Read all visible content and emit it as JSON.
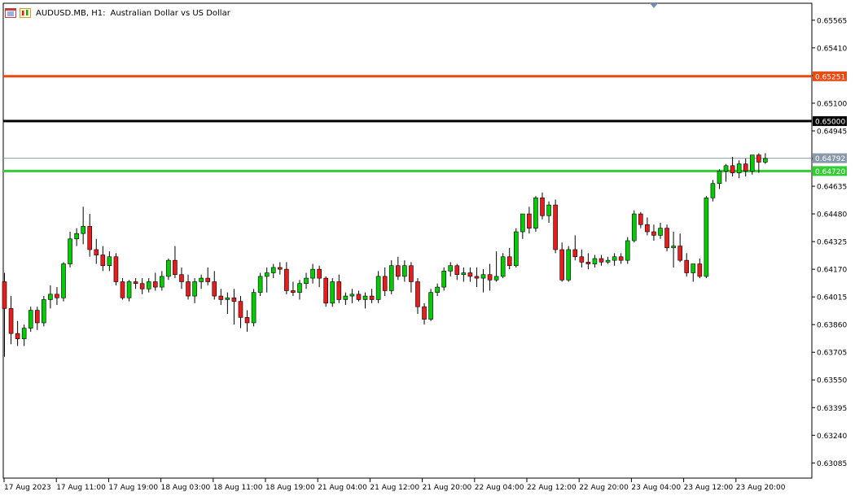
{
  "header": {
    "symbol": "AUDUSD.MB, H1:",
    "description": "Australian Dollar vs US Dollar",
    "icon": "chart-window-icon",
    "icon2": "candles-icon"
  },
  "colors": {
    "background": "#ffffff",
    "axis": "#000000",
    "bull": "#00cc00",
    "bear": "#e81c1c",
    "wick": "#000000",
    "resistance_line": "#e84a12",
    "round_level_line": "#000000",
    "support_line": "#33cc33",
    "bid_line": "#8899aa",
    "bid_label_bg": "#8899aa"
  },
  "chart_data": {
    "type": "candlestick",
    "symbol": "AUDUSD.MB",
    "timeframe": "H1",
    "ylim": [
      0.63,
      0.6566
    ],
    "y_ticks": [
      "0.65565",
      "0.65410",
      "0.65255",
      "0.65100",
      "0.64945",
      "0.64790",
      "0.64635",
      "0.64480",
      "0.64325",
      "0.64170",
      "0.64015",
      "0.63860",
      "0.63705",
      "0.63550",
      "0.63395",
      "0.63240",
      "0.63085"
    ],
    "x_ticks": [
      "17 Aug 2023",
      "17 Aug 11:00",
      "17 Aug 19:00",
      "18 Aug 03:00",
      "18 Aug 11:00",
      "18 Aug 19:00",
      "21 Aug 04:00",
      "21 Aug 12:00",
      "21 Aug 20:00",
      "22 Aug 04:00",
      "22 Aug 12:00",
      "22 Aug 20:00",
      "23 Aug 04:00",
      "23 Aug 12:00",
      "23 Aug 20:00"
    ],
    "levels": [
      {
        "price": 0.65251,
        "label": "0.65251",
        "kind": "resistance",
        "color": "#e84a12"
      },
      {
        "price": 0.65,
        "label": "0.65000",
        "kind": "round",
        "color": "#000000"
      },
      {
        "price": 0.64792,
        "label": "0.64792",
        "kind": "bid",
        "color": "#8899aa"
      },
      {
        "price": 0.6472,
        "label": "0.64720",
        "kind": "support",
        "color": "#33cc33"
      }
    ],
    "candles": [
      {
        "o": 0.641,
        "h": 0.6415,
        "l": 0.6368,
        "c": 0.6395
      },
      {
        "o": 0.6395,
        "h": 0.6402,
        "l": 0.6375,
        "c": 0.6381
      },
      {
        "o": 0.6381,
        "h": 0.6388,
        "l": 0.6374,
        "c": 0.6378
      },
      {
        "o": 0.6378,
        "h": 0.6386,
        "l": 0.6374,
        "c": 0.6384
      },
      {
        "o": 0.6384,
        "h": 0.6396,
        "l": 0.6382,
        "c": 0.6394
      },
      {
        "o": 0.6394,
        "h": 0.6396,
        "l": 0.6383,
        "c": 0.6387
      },
      {
        "o": 0.6387,
        "h": 0.6402,
        "l": 0.6385,
        "c": 0.64
      },
      {
        "o": 0.64,
        "h": 0.6408,
        "l": 0.6395,
        "c": 0.6403
      },
      {
        "o": 0.6403,
        "h": 0.6407,
        "l": 0.6397,
        "c": 0.6401
      },
      {
        "o": 0.6401,
        "h": 0.6421,
        "l": 0.6399,
        "c": 0.642
      },
      {
        "o": 0.642,
        "h": 0.6438,
        "l": 0.6418,
        "c": 0.6434
      },
      {
        "o": 0.6434,
        "h": 0.644,
        "l": 0.643,
        "c": 0.6437
      },
      {
        "o": 0.6437,
        "h": 0.6452,
        "l": 0.6431,
        "c": 0.6441
      },
      {
        "o": 0.6441,
        "h": 0.6448,
        "l": 0.6424,
        "c": 0.6428
      },
      {
        "o": 0.6428,
        "h": 0.6434,
        "l": 0.642,
        "c": 0.6425
      },
      {
        "o": 0.6425,
        "h": 0.643,
        "l": 0.6416,
        "c": 0.6419
      },
      {
        "o": 0.6419,
        "h": 0.6427,
        "l": 0.6416,
        "c": 0.6424
      },
      {
        "o": 0.6424,
        "h": 0.6426,
        "l": 0.6408,
        "c": 0.641
      },
      {
        "o": 0.641,
        "h": 0.6412,
        "l": 0.64,
        "c": 0.6401
      },
      {
        "o": 0.6401,
        "h": 0.6411,
        "l": 0.6399,
        "c": 0.641
      },
      {
        "o": 0.641,
        "h": 0.6412,
        "l": 0.6406,
        "c": 0.6409
      },
      {
        "o": 0.6409,
        "h": 0.6412,
        "l": 0.6403,
        "c": 0.6406
      },
      {
        "o": 0.6406,
        "h": 0.6412,
        "l": 0.6404,
        "c": 0.641
      },
      {
        "o": 0.641,
        "h": 0.6415,
        "l": 0.6405,
        "c": 0.6407
      },
      {
        "o": 0.6407,
        "h": 0.6416,
        "l": 0.6405,
        "c": 0.6413
      },
      {
        "o": 0.6413,
        "h": 0.6423,
        "l": 0.6411,
        "c": 0.6422
      },
      {
        "o": 0.6422,
        "h": 0.643,
        "l": 0.6412,
        "c": 0.6414
      },
      {
        "o": 0.6414,
        "h": 0.6418,
        "l": 0.6406,
        "c": 0.641
      },
      {
        "o": 0.641,
        "h": 0.6414,
        "l": 0.64,
        "c": 0.6402
      },
      {
        "o": 0.6402,
        "h": 0.6412,
        "l": 0.6398,
        "c": 0.641
      },
      {
        "o": 0.641,
        "h": 0.6414,
        "l": 0.6406,
        "c": 0.6412
      },
      {
        "o": 0.6412,
        "h": 0.6418,
        "l": 0.6408,
        "c": 0.641
      },
      {
        "o": 0.641,
        "h": 0.6416,
        "l": 0.64,
        "c": 0.6402
      },
      {
        "o": 0.6402,
        "h": 0.6406,
        "l": 0.6397,
        "c": 0.64
      },
      {
        "o": 0.64,
        "h": 0.6404,
        "l": 0.6392,
        "c": 0.6401
      },
      {
        "o": 0.6401,
        "h": 0.6406,
        "l": 0.6386,
        "c": 0.6399
      },
      {
        "o": 0.6399,
        "h": 0.6402,
        "l": 0.6384,
        "c": 0.639
      },
      {
        "o": 0.639,
        "h": 0.6394,
        "l": 0.6382,
        "c": 0.6387
      },
      {
        "o": 0.6387,
        "h": 0.6406,
        "l": 0.6385,
        "c": 0.6404
      },
      {
        "o": 0.6404,
        "h": 0.6415,
        "l": 0.6402,
        "c": 0.6413
      },
      {
        "o": 0.6413,
        "h": 0.6418,
        "l": 0.6404,
        "c": 0.6415
      },
      {
        "o": 0.6415,
        "h": 0.642,
        "l": 0.6412,
        "c": 0.6418
      },
      {
        "o": 0.6418,
        "h": 0.6421,
        "l": 0.6414,
        "c": 0.6417
      },
      {
        "o": 0.6417,
        "h": 0.6421,
        "l": 0.6403,
        "c": 0.6405
      },
      {
        "o": 0.6405,
        "h": 0.641,
        "l": 0.6402,
        "c": 0.6404
      },
      {
        "o": 0.6404,
        "h": 0.6411,
        "l": 0.64,
        "c": 0.6409
      },
      {
        "o": 0.6409,
        "h": 0.6415,
        "l": 0.6406,
        "c": 0.6412
      },
      {
        "o": 0.6412,
        "h": 0.642,
        "l": 0.6409,
        "c": 0.6417
      },
      {
        "o": 0.6417,
        "h": 0.6419,
        "l": 0.6407,
        "c": 0.6412
      },
      {
        "o": 0.6412,
        "h": 0.6413,
        "l": 0.6396,
        "c": 0.6398
      },
      {
        "o": 0.6398,
        "h": 0.6412,
        "l": 0.6396,
        "c": 0.641
      },
      {
        "o": 0.641,
        "h": 0.6414,
        "l": 0.6398,
        "c": 0.64
      },
      {
        "o": 0.64,
        "h": 0.6404,
        "l": 0.6397,
        "c": 0.6402
      },
      {
        "o": 0.6402,
        "h": 0.6406,
        "l": 0.6398,
        "c": 0.6403
      },
      {
        "o": 0.6403,
        "h": 0.6405,
        "l": 0.6399,
        "c": 0.64
      },
      {
        "o": 0.64,
        "h": 0.6404,
        "l": 0.6395,
        "c": 0.6402
      },
      {
        "o": 0.6402,
        "h": 0.6406,
        "l": 0.6398,
        "c": 0.64
      },
      {
        "o": 0.64,
        "h": 0.6416,
        "l": 0.6398,
        "c": 0.6413
      },
      {
        "o": 0.6413,
        "h": 0.6418,
        "l": 0.6402,
        "c": 0.6405
      },
      {
        "o": 0.6405,
        "h": 0.6422,
        "l": 0.6403,
        "c": 0.6419
      },
      {
        "o": 0.6419,
        "h": 0.6424,
        "l": 0.6411,
        "c": 0.6413
      },
      {
        "o": 0.6413,
        "h": 0.6422,
        "l": 0.641,
        "c": 0.6419
      },
      {
        "o": 0.6419,
        "h": 0.6421,
        "l": 0.6404,
        "c": 0.641
      },
      {
        "o": 0.641,
        "h": 0.6412,
        "l": 0.6392,
        "c": 0.6396
      },
      {
        "o": 0.6396,
        "h": 0.6398,
        "l": 0.6386,
        "c": 0.6389
      },
      {
        "o": 0.6389,
        "h": 0.6406,
        "l": 0.6388,
        "c": 0.6404
      },
      {
        "o": 0.6404,
        "h": 0.6409,
        "l": 0.6402,
        "c": 0.6407
      },
      {
        "o": 0.6407,
        "h": 0.6418,
        "l": 0.6405,
        "c": 0.6416
      },
      {
        "o": 0.6416,
        "h": 0.6421,
        "l": 0.6413,
        "c": 0.6419
      },
      {
        "o": 0.6419,
        "h": 0.642,
        "l": 0.6411,
        "c": 0.6414
      },
      {
        "o": 0.6414,
        "h": 0.6418,
        "l": 0.641,
        "c": 0.6415
      },
      {
        "o": 0.6415,
        "h": 0.6418,
        "l": 0.641,
        "c": 0.6413
      },
      {
        "o": 0.6413,
        "h": 0.6418,
        "l": 0.6407,
        "c": 0.6412
      },
      {
        "o": 0.6412,
        "h": 0.6417,
        "l": 0.6404,
        "c": 0.6414
      },
      {
        "o": 0.6414,
        "h": 0.642,
        "l": 0.6405,
        "c": 0.6411
      },
      {
        "o": 0.6411,
        "h": 0.6427,
        "l": 0.641,
        "c": 0.6413
      },
      {
        "o": 0.6413,
        "h": 0.6426,
        "l": 0.6412,
        "c": 0.6424
      },
      {
        "o": 0.6424,
        "h": 0.6429,
        "l": 0.6417,
        "c": 0.6419
      },
      {
        "o": 0.6419,
        "h": 0.644,
        "l": 0.6418,
        "c": 0.6438
      },
      {
        "o": 0.6438,
        "h": 0.6448,
        "l": 0.6434,
        "c": 0.6448
      },
      {
        "o": 0.6448,
        "h": 0.6452,
        "l": 0.6437,
        "c": 0.644
      },
      {
        "o": 0.644,
        "h": 0.6458,
        "l": 0.6438,
        "c": 0.6457
      },
      {
        "o": 0.6457,
        "h": 0.646,
        "l": 0.6445,
        "c": 0.6447
      },
      {
        "o": 0.6447,
        "h": 0.6455,
        "l": 0.6443,
        "c": 0.6453
      },
      {
        "o": 0.6453,
        "h": 0.6456,
        "l": 0.6426,
        "c": 0.6428
      },
      {
        "o": 0.6428,
        "h": 0.6432,
        "l": 0.641,
        "c": 0.6411
      },
      {
        "o": 0.6411,
        "h": 0.643,
        "l": 0.641,
        "c": 0.6428
      },
      {
        "o": 0.6428,
        "h": 0.6436,
        "l": 0.6422,
        "c": 0.6424
      },
      {
        "o": 0.6424,
        "h": 0.6428,
        "l": 0.6418,
        "c": 0.6421
      },
      {
        "o": 0.6421,
        "h": 0.6426,
        "l": 0.6417,
        "c": 0.642
      },
      {
        "o": 0.642,
        "h": 0.6425,
        "l": 0.6418,
        "c": 0.6423
      },
      {
        "o": 0.6423,
        "h": 0.6425,
        "l": 0.6419,
        "c": 0.6421
      },
      {
        "o": 0.6421,
        "h": 0.6424,
        "l": 0.642,
        "c": 0.6422
      },
      {
        "o": 0.6422,
        "h": 0.6426,
        "l": 0.6419,
        "c": 0.6424
      },
      {
        "o": 0.6424,
        "h": 0.6426,
        "l": 0.642,
        "c": 0.6422
      },
      {
        "o": 0.6422,
        "h": 0.6435,
        "l": 0.642,
        "c": 0.6433
      },
      {
        "o": 0.6433,
        "h": 0.645,
        "l": 0.6432,
        "c": 0.6448
      },
      {
        "o": 0.6448,
        "h": 0.6449,
        "l": 0.644,
        "c": 0.6442
      },
      {
        "o": 0.6442,
        "h": 0.6446,
        "l": 0.6436,
        "c": 0.6438
      },
      {
        "o": 0.6438,
        "h": 0.6442,
        "l": 0.6433,
        "c": 0.6436
      },
      {
        "o": 0.6436,
        "h": 0.6443,
        "l": 0.6434,
        "c": 0.644
      },
      {
        "o": 0.644,
        "h": 0.6442,
        "l": 0.6427,
        "c": 0.6429
      },
      {
        "o": 0.6429,
        "h": 0.6438,
        "l": 0.6418,
        "c": 0.643
      },
      {
        "o": 0.643,
        "h": 0.6437,
        "l": 0.6421,
        "c": 0.6422
      },
      {
        "o": 0.6422,
        "h": 0.6426,
        "l": 0.6413,
        "c": 0.6415
      },
      {
        "o": 0.6415,
        "h": 0.6418,
        "l": 0.641,
        "c": 0.642
      },
      {
        "o": 0.642,
        "h": 0.6423,
        "l": 0.6412,
        "c": 0.6413
      },
      {
        "o": 0.6413,
        "h": 0.6458,
        "l": 0.6412,
        "c": 0.6457
      },
      {
        "o": 0.6457,
        "h": 0.6467,
        "l": 0.6455,
        "c": 0.6465
      },
      {
        "o": 0.6465,
        "h": 0.6473,
        "l": 0.6462,
        "c": 0.6472
      },
      {
        "o": 0.6472,
        "h": 0.6476,
        "l": 0.6466,
        "c": 0.6475
      },
      {
        "o": 0.6475,
        "h": 0.648,
        "l": 0.6469,
        "c": 0.6471
      },
      {
        "o": 0.6471,
        "h": 0.6478,
        "l": 0.6468,
        "c": 0.6476
      },
      {
        "o": 0.6476,
        "h": 0.6479,
        "l": 0.6469,
        "c": 0.6472
      },
      {
        "o": 0.6472,
        "h": 0.6481,
        "l": 0.647,
        "c": 0.6481
      },
      {
        "o": 0.6481,
        "h": 0.6482,
        "l": 0.6471,
        "c": 0.6477
      },
      {
        "o": 0.6477,
        "h": 0.6482,
        "l": 0.6476,
        "c": 0.6479
      }
    ]
  }
}
